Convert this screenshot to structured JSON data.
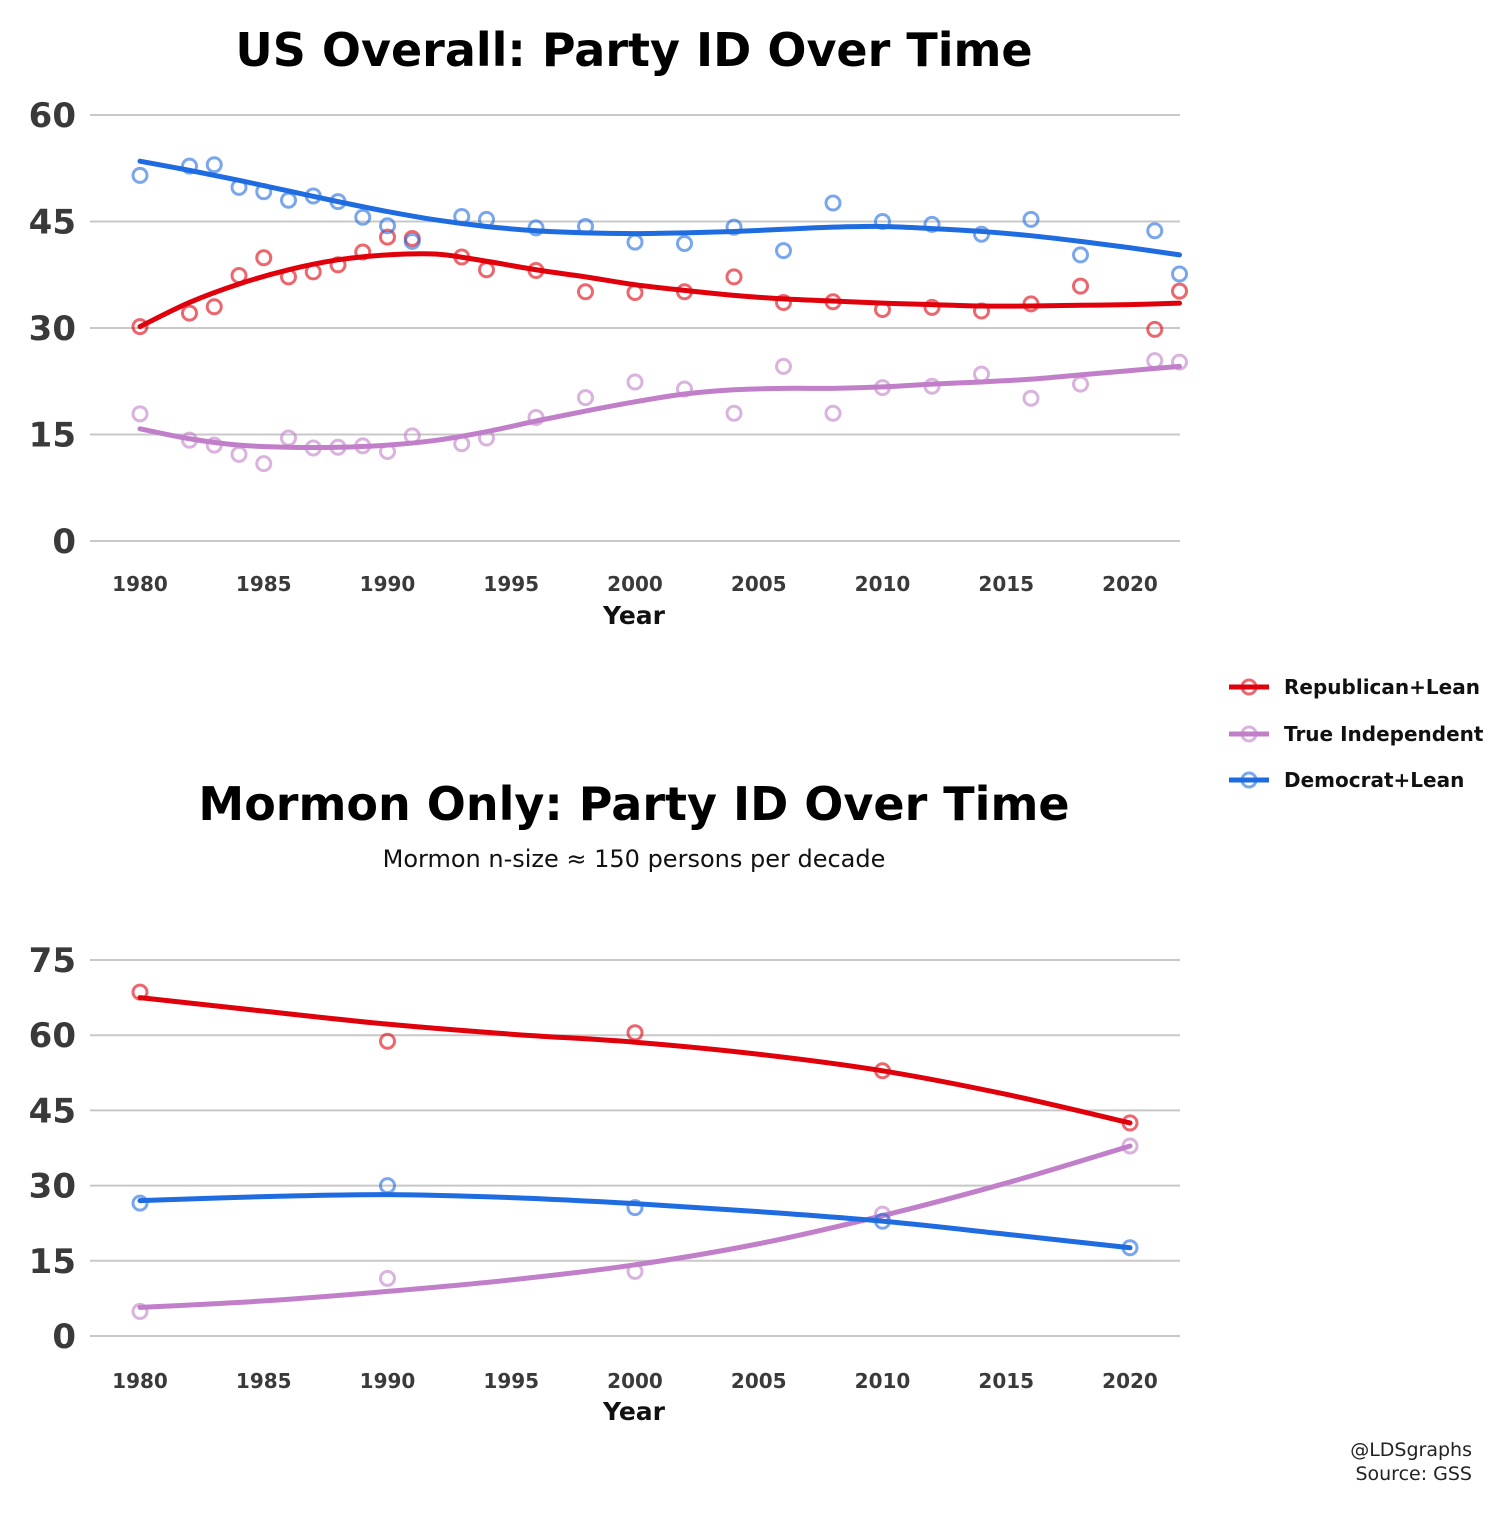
{
  "legend": {
    "items": [
      {
        "label": "Republican+Lean",
        "color": "#e0000b"
      },
      {
        "label": "True Independent",
        "color": "#c07fc8"
      },
      {
        "label": "Democrat+Lean",
        "color": "#1f6be0"
      }
    ]
  },
  "credit": {
    "line1": "@LDSgraphs",
    "line2": "Source: GSS"
  },
  "chart_data": [
    {
      "type": "scatter",
      "title": "US Overall: Party ID Over Time",
      "xlabel": "Year",
      "ylabel": "",
      "xlim": [
        1978,
        2024
      ],
      "ylim": [
        0,
        60
      ],
      "xticks": [
        1980,
        1985,
        1990,
        1995,
        2000,
        2005,
        2010,
        2015,
        2020
      ],
      "yticks": [
        0,
        15,
        30,
        45,
        60
      ],
      "grid": true,
      "legend_position": "right",
      "series": [
        {
          "name": "Republican+Lean",
          "color": "#e0000b",
          "points": [
            [
              1980,
              30.2
            ],
            [
              1982,
              32.1
            ],
            [
              1983,
              33.0
            ],
            [
              1984,
              37.4
            ],
            [
              1985,
              39.9
            ],
            [
              1986,
              37.2
            ],
            [
              1987,
              37.9
            ],
            [
              1988,
              38.9
            ],
            [
              1989,
              40.7
            ],
            [
              1990,
              42.8
            ],
            [
              1991,
              42.6
            ],
            [
              1993,
              40.0
            ],
            [
              1994,
              38.2
            ],
            [
              1996,
              38.1
            ],
            [
              1998,
              35.1
            ],
            [
              2000,
              35.0
            ],
            [
              2002,
              35.1
            ],
            [
              2004,
              37.2
            ],
            [
              2006,
              33.6
            ],
            [
              2008,
              33.7
            ],
            [
              2010,
              32.6
            ],
            [
              2012,
              32.9
            ],
            [
              2014,
              32.4
            ],
            [
              2016,
              33.4
            ],
            [
              2018,
              35.9
            ],
            [
              2021,
              29.8
            ],
            [
              2022,
              35.2
            ]
          ],
          "trend": [
            [
              1980,
              30.2
            ],
            [
              1982,
              33.6
            ],
            [
              1984,
              36.2
            ],
            [
              1986,
              38.2
            ],
            [
              1988,
              39.6
            ],
            [
              1990,
              40.3
            ],
            [
              1992,
              40.4
            ],
            [
              1994,
              39.4
            ],
            [
              1996,
              38.2
            ],
            [
              1998,
              37.2
            ],
            [
              2000,
              36.1
            ],
            [
              2002,
              35.3
            ],
            [
              2004,
              34.6
            ],
            [
              2006,
              34.1
            ],
            [
              2008,
              33.8
            ],
            [
              2010,
              33.5
            ],
            [
              2012,
              33.3
            ],
            [
              2014,
              33.1
            ],
            [
              2016,
              33.1
            ],
            [
              2018,
              33.2
            ],
            [
              2020,
              33.3
            ],
            [
              2022,
              33.5
            ]
          ]
        },
        {
          "name": "True Independent",
          "color": "#c07fc8",
          "points": [
            [
              1980,
              17.9
            ],
            [
              1982,
              14.2
            ],
            [
              1983,
              13.5
            ],
            [
              1984,
              12.2
            ],
            [
              1985,
              10.9
            ],
            [
              1986,
              14.5
            ],
            [
              1987,
              13.1
            ],
            [
              1988,
              13.2
            ],
            [
              1989,
              13.4
            ],
            [
              1990,
              12.6
            ],
            [
              1991,
              14.8
            ],
            [
              1993,
              13.7
            ],
            [
              1994,
              14.5
            ],
            [
              1996,
              17.4
            ],
            [
              1998,
              20.2
            ],
            [
              2000,
              22.4
            ],
            [
              2002,
              21.4
            ],
            [
              2004,
              18.0
            ],
            [
              2006,
              24.6
            ],
            [
              2008,
              18.0
            ],
            [
              2010,
              21.6
            ],
            [
              2012,
              21.8
            ],
            [
              2014,
              23.5
            ],
            [
              2016,
              20.1
            ],
            [
              2018,
              22.1
            ],
            [
              2021,
              25.4
            ],
            [
              2022,
              25.2
            ]
          ],
          "trend": [
            [
              1980,
              15.8
            ],
            [
              1982,
              14.4
            ],
            [
              1984,
              13.5
            ],
            [
              1986,
              13.2
            ],
            [
              1988,
              13.2
            ],
            [
              1990,
              13.5
            ],
            [
              1992,
              14.2
            ],
            [
              1994,
              15.4
            ],
            [
              1996,
              16.9
            ],
            [
              1998,
              18.3
            ],
            [
              2000,
              19.6
            ],
            [
              2002,
              20.7
            ],
            [
              2004,
              21.3
            ],
            [
              2006,
              21.5
            ],
            [
              2008,
              21.5
            ],
            [
              2010,
              21.7
            ],
            [
              2012,
              22.1
            ],
            [
              2014,
              22.4
            ],
            [
              2016,
              22.8
            ],
            [
              2018,
              23.4
            ],
            [
              2020,
              24.0
            ],
            [
              2022,
              24.6
            ]
          ]
        },
        {
          "name": "Democrat+Lean",
          "color": "#1f6be0",
          "points": [
            [
              1980,
              51.5
            ],
            [
              1982,
              52.8
            ],
            [
              1983,
              53.0
            ],
            [
              1984,
              49.8
            ],
            [
              1985,
              49.2
            ],
            [
              1986,
              48.0
            ],
            [
              1987,
              48.6
            ],
            [
              1988,
              47.8
            ],
            [
              1989,
              45.6
            ],
            [
              1990,
              44.4
            ],
            [
              1991,
              42.2
            ],
            [
              1993,
              45.7
            ],
            [
              1994,
              45.3
            ],
            [
              1996,
              44.1
            ],
            [
              1998,
              44.3
            ],
            [
              2000,
              42.1
            ],
            [
              2002,
              41.9
            ],
            [
              2004,
              44.2
            ],
            [
              2006,
              40.9
            ],
            [
              2008,
              47.6
            ],
            [
              2010,
              45.0
            ],
            [
              2012,
              44.6
            ],
            [
              2014,
              43.2
            ],
            [
              2016,
              45.3
            ],
            [
              2018,
              40.3
            ],
            [
              2021,
              43.7
            ],
            [
              2022,
              37.6
            ]
          ],
          "trend": [
            [
              1980,
              53.5
            ],
            [
              1982,
              52.2
            ],
            [
              1984,
              50.8
            ],
            [
              1986,
              49.3
            ],
            [
              1988,
              47.8
            ],
            [
              1990,
              46.4
            ],
            [
              1992,
              45.2
            ],
            [
              1994,
              44.3
            ],
            [
              1996,
              43.7
            ],
            [
              1998,
              43.4
            ],
            [
              2000,
              43.3
            ],
            [
              2002,
              43.4
            ],
            [
              2004,
              43.6
            ],
            [
              2006,
              43.9
            ],
            [
              2008,
              44.2
            ],
            [
              2010,
              44.3
            ],
            [
              2012,
              44.0
            ],
            [
              2014,
              43.6
            ],
            [
              2016,
              43.0
            ],
            [
              2018,
              42.2
            ],
            [
              2020,
              41.3
            ],
            [
              2022,
              40.3
            ]
          ]
        }
      ]
    },
    {
      "type": "scatter",
      "title": "Mormon Only: Party ID Over Time",
      "subtitle": "Mormon n-size ≈ 150 persons per decade",
      "xlabel": "Year",
      "ylabel": "",
      "xlim": [
        1978,
        2022
      ],
      "ylim": [
        0,
        75
      ],
      "xticks": [
        1980,
        1985,
        1990,
        1995,
        2000,
        2005,
        2010,
        2015,
        2020
      ],
      "yticks": [
        0,
        15,
        30,
        45,
        60,
        75
      ],
      "grid": true,
      "legend_position": "right",
      "series": [
        {
          "name": "Republican+Lean",
          "color": "#e0000b",
          "points": [
            [
              1980,
              68.6
            ],
            [
              1990,
              58.8
            ],
            [
              2000,
              60.5
            ],
            [
              2010,
              52.9
            ],
            [
              2020,
              42.5
            ]
          ],
          "trend": [
            [
              1980,
              67.5
            ],
            [
              1985,
              64.8
            ],
            [
              1990,
              62.2
            ],
            [
              1995,
              60.2
            ],
            [
              2000,
              58.6
            ],
            [
              2005,
              56.2
            ],
            [
              2010,
              52.9
            ],
            [
              2015,
              48.2
            ],
            [
              2020,
              42.5
            ]
          ]
        },
        {
          "name": "True Independent",
          "color": "#c07fc8",
          "points": [
            [
              1980,
              4.9
            ],
            [
              1990,
              11.5
            ],
            [
              2000,
              12.9
            ],
            [
              2010,
              24.3
            ],
            [
              2020,
              37.9
            ]
          ],
          "trend": [
            [
              1980,
              5.7
            ],
            [
              1985,
              7.0
            ],
            [
              1990,
              8.9
            ],
            [
              1995,
              11.2
            ],
            [
              2000,
              14.2
            ],
            [
              2005,
              18.4
            ],
            [
              2010,
              24.0
            ],
            [
              2015,
              30.5
            ],
            [
              2020,
              37.9
            ]
          ]
        },
        {
          "name": "Democrat+Lean",
          "color": "#1f6be0",
          "points": [
            [
              1980,
              26.5
            ],
            [
              1990,
              30.0
            ],
            [
              2000,
              25.6
            ],
            [
              2010,
              22.9
            ],
            [
              2020,
              17.6
            ]
          ],
          "trend": [
            [
              1980,
              27.0
            ],
            [
              1985,
              27.8
            ],
            [
              1990,
              28.2
            ],
            [
              1995,
              27.6
            ],
            [
              2000,
              26.4
            ],
            [
              2005,
              24.8
            ],
            [
              2010,
              22.9
            ],
            [
              2015,
              20.3
            ],
            [
              2020,
              17.6
            ]
          ]
        }
      ]
    }
  ]
}
